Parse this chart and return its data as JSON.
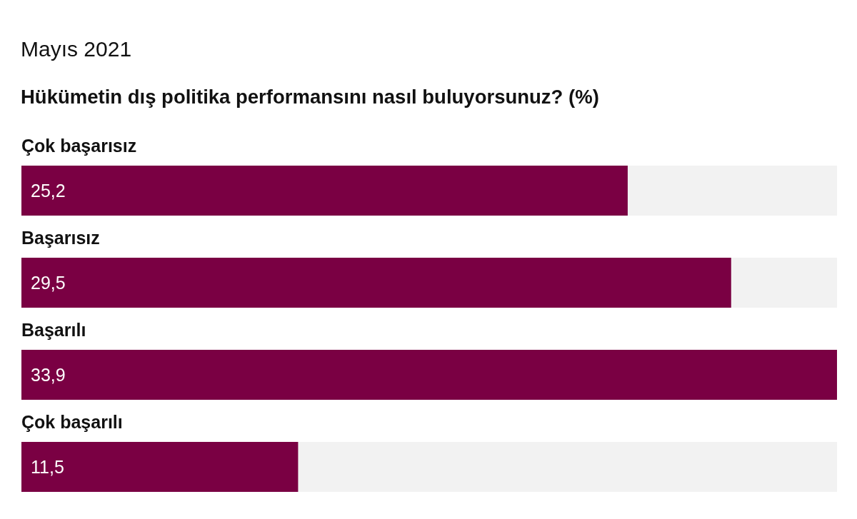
{
  "chart_data": {
    "type": "bar",
    "orientation": "horizontal",
    "subtitle": "Mayıs 2021",
    "title": "Hükümetin dış politika performansını nasıl buluyorsunuz? (%)",
    "categories": [
      "Çok başarısız",
      "Başarısız",
      "Başarılı",
      "Çok başarılı"
    ],
    "values": [
      25.2,
      29.5,
      33.9,
      11.5
    ],
    "color": "#7a0043",
    "value_labels": [
      "25,2",
      "29,5",
      "33,9",
      "11,5"
    ]
  }
}
